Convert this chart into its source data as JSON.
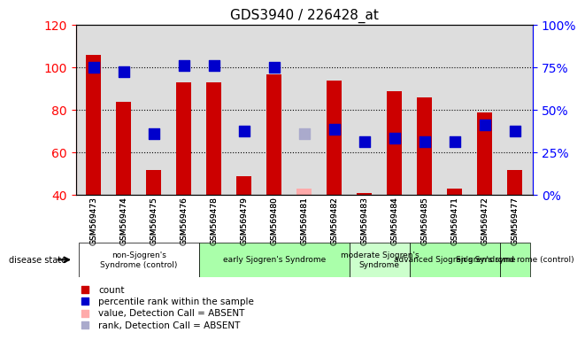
{
  "title": "GDS3940 / 226428_at",
  "samples": [
    "GSM569473",
    "GSM569474",
    "GSM569475",
    "GSM569476",
    "GSM569478",
    "GSM569479",
    "GSM569480",
    "GSM569481",
    "GSM569482",
    "GSM569483",
    "GSM569484",
    "GSM569485",
    "GSM569471",
    "GSM569472",
    "GSM569477"
  ],
  "bar_values": [
    106,
    84,
    52,
    93,
    93,
    49,
    97,
    null,
    94,
    41,
    89,
    86,
    43,
    79,
    52
  ],
  "bar_absent": [
    null,
    null,
    null,
    null,
    null,
    null,
    null,
    43,
    null,
    null,
    null,
    null,
    null,
    null,
    null
  ],
  "rank_values": [
    100,
    98,
    69,
    101,
    101,
    70,
    100,
    null,
    71,
    65,
    67,
    65,
    65,
    73,
    70
  ],
  "rank_absent": [
    null,
    null,
    null,
    null,
    null,
    null,
    null,
    69,
    null,
    null,
    null,
    null,
    null,
    null,
    null
  ],
  "bar_color": "#cc0000",
  "bar_absent_color": "#ffaaaa",
  "rank_color": "#0000cc",
  "rank_absent_color": "#aaaacc",
  "ylim_left": [
    40,
    120
  ],
  "ylim_right": [
    0,
    100
  ],
  "yticks_left": [
    40,
    60,
    80,
    100,
    120
  ],
  "yticks_right": [
    0,
    25,
    50,
    75,
    100
  ],
  "yticklabels_right": [
    "0%",
    "25%",
    "50%",
    "75%",
    "100%"
  ],
  "groups": [
    {
      "label": "non-Sjogren's\nSyndrome (control)",
      "start": 0,
      "end": 4,
      "color": "#ffffff"
    },
    {
      "label": "early Sjogren's Syndrome",
      "start": 4,
      "end": 9,
      "color": "#aaffaa"
    },
    {
      "label": "moderate Sjogren's\nSyndrome",
      "start": 9,
      "end": 11,
      "color": "#ccffcc"
    },
    {
      "label": "advanced Sjogren's Syndrome",
      "start": 11,
      "end": 14,
      "color": "#aaffaa"
    },
    {
      "label": "Sjogren's synd rome (control)",
      "start": 14,
      "end": 15,
      "color": "#aaffaa"
    }
  ],
  "disease_state_label": "disease state",
  "legend_items": [
    {
      "label": "count",
      "color": "#cc0000",
      "absent": false
    },
    {
      "label": "percentile rank within the sample",
      "color": "#0000cc",
      "absent": false
    },
    {
      "label": "value, Detection Call = ABSENT",
      "color": "#ffaaaa",
      "absent": true
    },
    {
      "label": "rank, Detection Call = ABSENT",
      "color": "#aaaacc",
      "absent": true
    }
  ],
  "bar_width": 0.5,
  "rank_marker_size": 80
}
